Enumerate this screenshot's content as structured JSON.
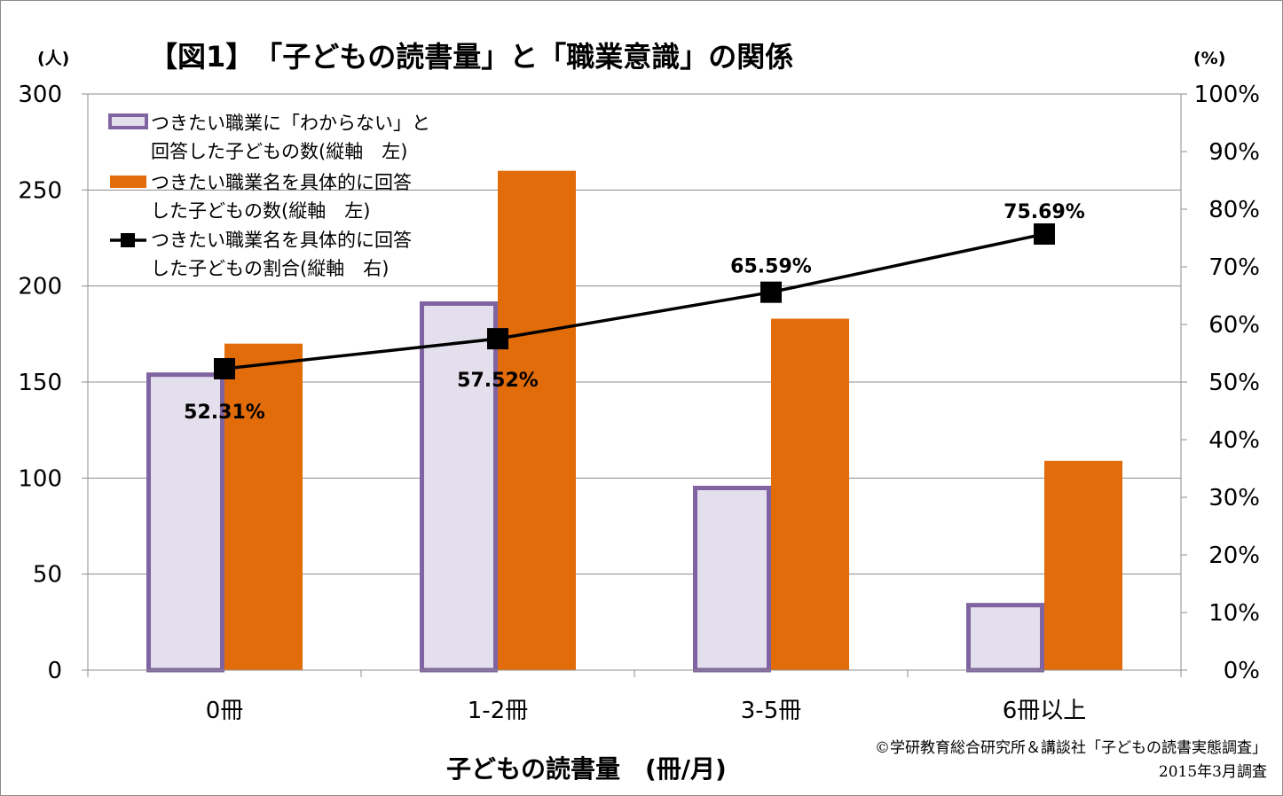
{
  "chart_data": {
    "type": "bar",
    "title": "【図1】　「子どもの読書量」と「職業意識」の関係",
    "xlabel": "子どもの読書量　(冊/月)",
    "ylabel_left_unit": "(人)",
    "ylabel_right_unit": "(%)",
    "categories": [
      "0冊",
      "1-2冊",
      "3-5冊",
      "6冊以上"
    ],
    "ylim_left": [
      0,
      300
    ],
    "yticks_left": [
      "0",
      "50",
      "100",
      "150",
      "200",
      "250",
      "300"
    ],
    "ylim_right": [
      0,
      100
    ],
    "yticks_right": [
      "0%",
      "10%",
      "20%",
      "30%",
      "40%",
      "50%",
      "60%",
      "70%",
      "80%",
      "90%",
      "100%"
    ],
    "grid": true,
    "legend_position": "top-left",
    "series": [
      {
        "name": "つきたい職業に「わからない」と回答した子どもの数(縦軸　左)",
        "legend_lines": [
          "つきたい職業に「わからない」と",
          "回答した子どもの数(縦軸　左)"
        ],
        "kind": "bar",
        "axis": "left",
        "values": [
          155,
          192,
          96,
          35
        ],
        "fill": "#e4dfec",
        "stroke": "#8064a2"
      },
      {
        "name": "つきたい職業名を具体的に回答した子どもの数(縦軸　左)",
        "legend_lines": [
          "つきたい職業名を具体的に回答",
          "した子どもの数(縦軸　左)"
        ],
        "kind": "bar",
        "axis": "left",
        "values": [
          170,
          260,
          183,
          109
        ],
        "fill": "#e36c0a"
      },
      {
        "name": "つきたい職業名を具体的に回答した子どもの割合(縦軸　右)",
        "legend_lines": [
          "つきたい職業名を具体的に回答",
          "した子どもの割合(縦軸　右)"
        ],
        "kind": "line",
        "axis": "right",
        "values": [
          52.31,
          57.52,
          65.59,
          75.69
        ],
        "labels": [
          "52.31%",
          "57.52%",
          "65.59%",
          "75.69%"
        ],
        "stroke": "#000000"
      }
    ]
  },
  "credit": {
    "line1": "©学研教育総合研究所＆講談社「子どもの読書実態調査」",
    "line2": "2015年3月調査"
  }
}
